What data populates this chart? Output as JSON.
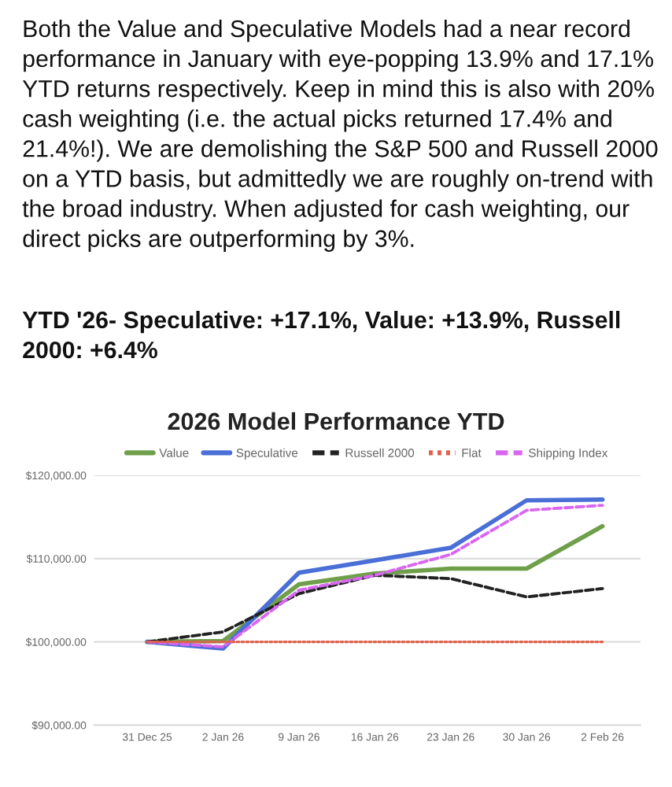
{
  "chart_data": {
    "type": "line",
    "title": "2026 Model Performance YTD",
    "annotations": [
      "Both the Value and Speculative Models had a near record performance in January with eye-popping 13.9% and 17.1% YTD returns respectively. Keep in mind this is also with 20% cash weighting (i.e. the actual picks returned 17.4% and 21.4%!). We are demolishing the S&P 500 and Russell 2000 on a YTD basis, but admittedly we are roughly on-trend with the broad industry. When adjusted for cash weighting, our direct picks are outperforming by 3%.",
      "YTD '26- Speculative: +17.1%, Value: +13.9%, Russell 2000: +6.4%"
    ],
    "categories": [
      "31 Dec 25",
      "2 Jan 26",
      "9 Jan 26",
      "16 Jan 26",
      "23 Jan 26",
      "30 Jan 26",
      "2 Feb 26"
    ],
    "series": [
      {
        "name": "Value",
        "color": "#6f9f4a",
        "line_style": "solid",
        "values": [
          100000,
          100100,
          106900,
          108200,
          108800,
          108800,
          113900
        ]
      },
      {
        "name": "Speculative",
        "color": "#4a6fd6",
        "line_style": "solid",
        "values": [
          100000,
          99200,
          108300,
          109800,
          111300,
          117000,
          117100
        ]
      },
      {
        "name": "Russell 2000",
        "color": "#222222",
        "line_style": "dashed",
        "values": [
          100000,
          101200,
          105800,
          108000,
          107600,
          105400,
          106400
        ]
      },
      {
        "name": "Flat",
        "color": "#e0604a",
        "line_style": "dotted",
        "values": [
          100000,
          100000,
          100000,
          100000,
          100000,
          100000,
          100000
        ]
      },
      {
        "name": "Shipping Index",
        "color": "#d966f0",
        "line_style": "dashed",
        "values": [
          100000,
          99400,
          106200,
          108000,
          110500,
          115800,
          116400
        ]
      }
    ],
    "ylim": [
      90000,
      120000
    ],
    "yticks": [
      {
        "value": 90000,
        "label": "$90,000.00"
      },
      {
        "value": 100000,
        "label": "$100,000.00"
      },
      {
        "value": 110000,
        "label": "$110,000.00"
      },
      {
        "value": 120000,
        "label": "$120,000.00"
      }
    ],
    "grid": "y",
    "legend": "top",
    "marker": "none"
  }
}
